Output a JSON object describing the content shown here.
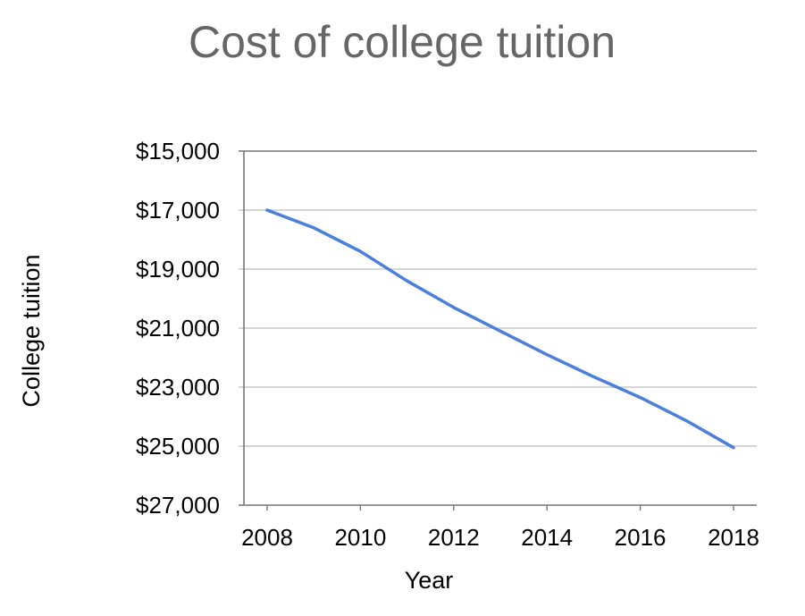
{
  "chart_data": {
    "type": "line",
    "title": "Cost of college tuition",
    "xlabel": "Year",
    "ylabel": "College tuition",
    "x": [
      2008,
      2009,
      2010,
      2011,
      2012,
      2013,
      2014,
      2015,
      2016,
      2017,
      2018
    ],
    "series": [
      {
        "values": [
          17000,
          17600,
          18400,
          19400,
          20300,
          21100,
          21900,
          22650,
          23350,
          24150,
          25050
        ]
      }
    ],
    "ylim": [
      15000,
      27000
    ],
    "y_inverted": true,
    "y_ticks": [
      15000,
      17000,
      19000,
      21000,
      23000,
      25000,
      27000
    ],
    "y_tick_labels": [
      "$15,000",
      "$17,000",
      "$19,000",
      "$21,000",
      "$23,000",
      "$25,000",
      "$27,000"
    ],
    "x_ticks": [
      2008,
      2010,
      2012,
      2014,
      2016,
      2018
    ],
    "x_tick_labels": [
      "2008",
      "2010",
      "2012",
      "2014",
      "2016",
      "2018"
    ],
    "grid": true,
    "legend": "none",
    "colors": {
      "line": "#4a7fe0",
      "grid": "#c8c8c8",
      "axis": "#777777",
      "title": "#666666"
    }
  }
}
